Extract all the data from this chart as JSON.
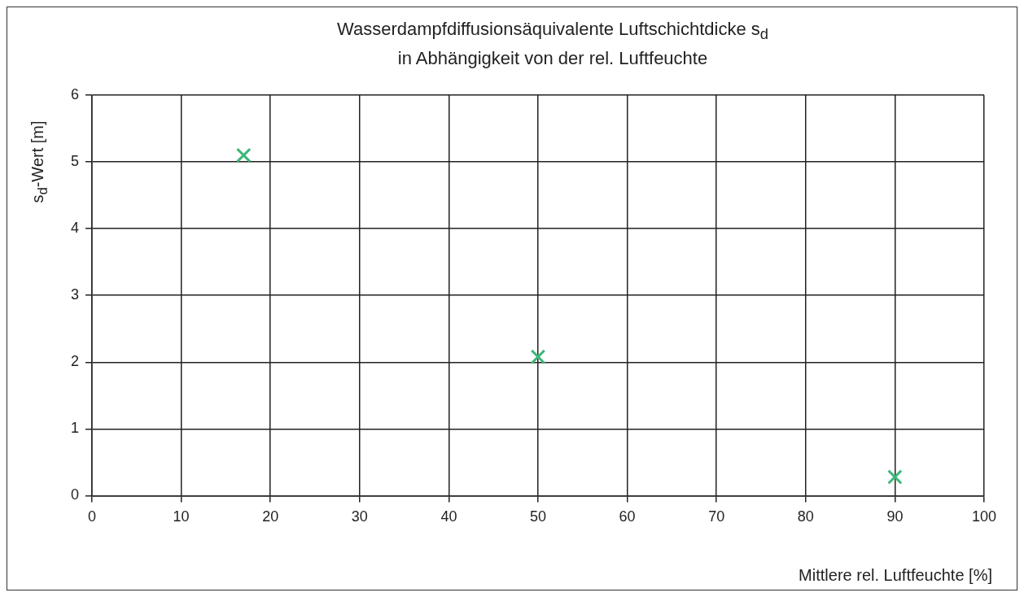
{
  "chart_data": {
    "type": "scatter",
    "title": "Wasserdampfdiffusionsäquivalente Luftschichtdicke s$_{d}$\nin Abhängigkeit von der rel. Luftfeuchte",
    "xlabel": "Mittlere rel. Luftfeuchte [%]",
    "ylabel": "s$_{d}$-Wert [m]",
    "x": [
      17,
      50,
      90
    ],
    "series": [
      {
        "color": "#3cb878",
        "values": [
          5.1,
          2.08,
          0.28
        ]
      }
    ],
    "xlim": [
      0,
      100
    ],
    "xticks": [
      0,
      10,
      20,
      30,
      40,
      50,
      60,
      70,
      80,
      90,
      100
    ],
    "ylim": [
      0,
      6
    ],
    "yticks": [
      0,
      1,
      2,
      3,
      4,
      5,
      6
    ],
    "grid": true,
    "legend": false,
    "marker": "cross"
  }
}
